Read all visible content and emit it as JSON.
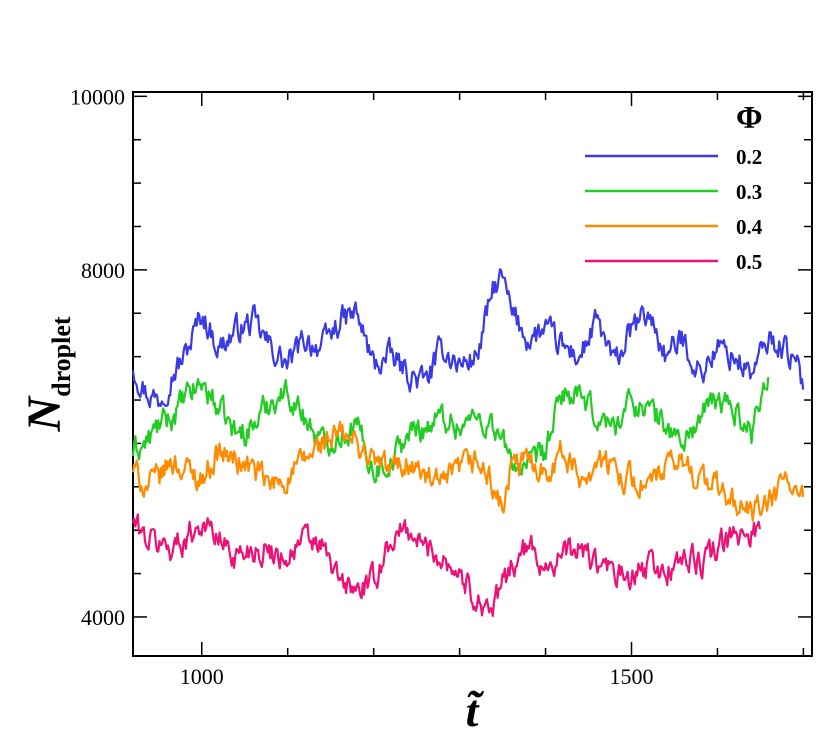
{
  "chart_data": {
    "type": "line",
    "title": "",
    "xlabel": "t̃",
    "ylabel": {
      "main": "N",
      "subscript": "droplet"
    },
    "xlim": [
      920,
      1710
    ],
    "ylim": [
      3550,
      10050
    ],
    "x_major_ticks": [
      1000,
      1500
    ],
    "x_minor_step": 100,
    "y_major_ticks": [
      4000,
      8000,
      10000
    ],
    "y_minor_step": 500,
    "grid": false,
    "legend": {
      "title": "Φ",
      "position": "top-right"
    },
    "x_range": [
      920,
      1700
    ],
    "series": [
      {
        "name": "0.2",
        "color": "#3a3ae6",
        "x": [
          920,
          935,
          950,
          965,
          980,
          1000,
          1020,
          1040,
          1060,
          1080,
          1100,
          1120,
          1140,
          1160,
          1180,
          1200,
          1220,
          1240,
          1260,
          1280,
          1300,
          1320,
          1340,
          1350,
          1360,
          1380,
          1400,
          1420,
          1440,
          1460,
          1480,
          1500,
          1520,
          1540,
          1560,
          1580,
          1600,
          1620,
          1640,
          1660,
          1680,
          1700
        ],
        "values": [
          6900,
          6600,
          6500,
          6800,
          7000,
          7500,
          7100,
          7300,
          7400,
          7100,
          6900,
          7200,
          7100,
          7400,
          7500,
          6900,
          7000,
          6800,
          6700,
          7100,
          6900,
          7000,
          7800,
          7900,
          7500,
          7200,
          7300,
          7100,
          7000,
          7400,
          6900,
          7300,
          7500,
          7000,
          7200,
          6800,
          7100,
          7000,
          6800,
          7200,
          7100,
          6700
        ]
      },
      {
        "name": "0.3",
        "color": "#22cc22",
        "x": [
          920,
          935,
          950,
          965,
          980,
          1000,
          1020,
          1040,
          1060,
          1080,
          1100,
          1120,
          1140,
          1160,
          1180,
          1200,
          1220,
          1240,
          1260,
          1280,
          1300,
          1320,
          1340,
          1360,
          1380,
          1400,
          1420,
          1440,
          1460,
          1480,
          1500,
          1520,
          1540,
          1560,
          1580,
          1600,
          1620,
          1640,
          1650,
          1660
        ],
        "values": [
          5900,
          6000,
          6200,
          6300,
          6500,
          6700,
          6400,
          6100,
          6200,
          6500,
          6600,
          6300,
          6000,
          6100,
          6200,
          5700,
          5800,
          6100,
          6200,
          6300,
          6200,
          6300,
          6200,
          5800,
          5700,
          5900,
          6600,
          6500,
          6300,
          6200,
          6500,
          6400,
          6200,
          6000,
          6300,
          6500,
          6400,
          6100,
          6600,
          6800
        ]
      },
      {
        "name": "0.4",
        "color": "#ff8c00",
        "x": [
          920,
          935,
          950,
          965,
          980,
          1000,
          1020,
          1040,
          1060,
          1080,
          1100,
          1120,
          1140,
          1160,
          1180,
          1200,
          1220,
          1240,
          1260,
          1280,
          1300,
          1320,
          1340,
          1350,
          1360,
          1380,
          1400,
          1420,
          1440,
          1460,
          1480,
          1500,
          1520,
          1540,
          1560,
          1580,
          1600,
          1620,
          1640,
          1660,
          1680,
          1700
        ],
        "values": [
          5700,
          5500,
          5600,
          5800,
          5700,
          5600,
          5900,
          5800,
          5700,
          5500,
          5600,
          5800,
          6000,
          6100,
          6000,
          5800,
          5700,
          5800,
          5600,
          5500,
          5700,
          5800,
          5500,
          5200,
          5700,
          5800,
          5700,
          5900,
          5600,
          5800,
          5700,
          5600,
          5500,
          5700,
          5800,
          5600,
          5500,
          5300,
          5200,
          5300,
          5600,
          5300
        ]
      },
      {
        "name": "0.5",
        "color": "#ee1177",
        "x": [
          920,
          935,
          950,
          965,
          980,
          1000,
          1020,
          1040,
          1060,
          1080,
          1100,
          1120,
          1140,
          1160,
          1180,
          1200,
          1220,
          1240,
          1260,
          1280,
          1300,
          1320,
          1340,
          1360,
          1380,
          1400,
          1420,
          1440,
          1460,
          1480,
          1500,
          1520,
          1540,
          1560,
          1580,
          1600,
          1620,
          1640,
          1650
        ],
        "values": [
          5100,
          4900,
          4850,
          4800,
          4900,
          5100,
          4900,
          4700,
          4800,
          4750,
          4700,
          4900,
          4800,
          4400,
          4300,
          4400,
          4900,
          5000,
          4800,
          4700,
          4500,
          4200,
          4100,
          4600,
          4800,
          4600,
          4700,
          4800,
          4600,
          4500,
          4400,
          4600,
          4500,
          4700,
          4600,
          4800,
          4900,
          5000,
          5050
        ]
      }
    ]
  }
}
